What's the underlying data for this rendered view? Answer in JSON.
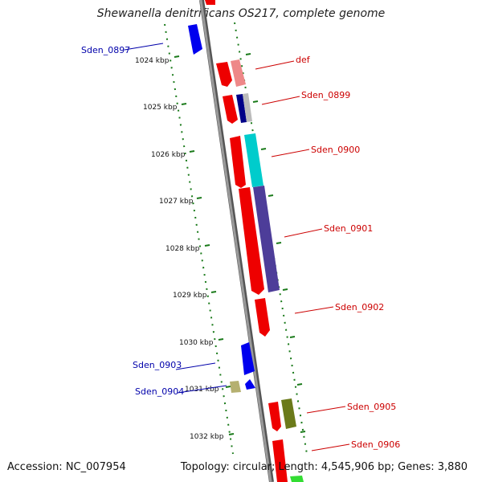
{
  "title": "Shewanella denitrificans OS217, complete genome",
  "footer": {
    "accession": "Accession: NC_007954",
    "summary": "Topology: circular; Length: 4,545,906 bp; Genes: 3,880"
  },
  "colors": {
    "backbone": "#8c8c8c",
    "tick": "#1a7a1a",
    "forward_label": "#cc0000",
    "reverse_label": "#0000aa"
  },
  "scale_ticks": [
    "1024 kbp",
    "1025 kbp",
    "1026 kbp",
    "1027 kbp",
    "1028 kbp",
    "1029 kbp",
    "1030 kbp",
    "1031 kbp",
    "1032 kbp"
  ],
  "gene_labels": [
    {
      "text": "Sden_0897",
      "strand": "reverse"
    },
    {
      "text": "def",
      "strand": "forward"
    },
    {
      "text": "Sden_0899",
      "strand": "forward"
    },
    {
      "text": "Sden_0900",
      "strand": "forward"
    },
    {
      "text": "Sden_0901",
      "strand": "forward"
    },
    {
      "text": "Sden_0902",
      "strand": "forward"
    },
    {
      "text": "Sden_0903",
      "strand": "reverse"
    },
    {
      "text": "Sden_0904",
      "strand": "reverse"
    },
    {
      "text": "Sden_0905",
      "strand": "forward"
    },
    {
      "text": "Sden_0906",
      "strand": "forward"
    }
  ]
}
